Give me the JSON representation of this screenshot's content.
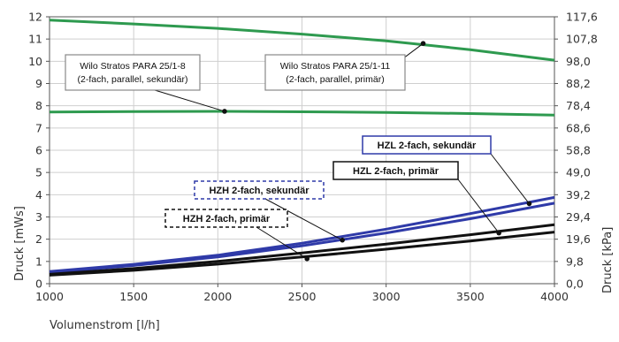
{
  "chart_data": {
    "type": "line",
    "xlabel": "Volumenstrom [l/h]",
    "ylabel": "Druck [mWs]",
    "y2label": "Druck [kPa]",
    "xlim": [
      1000,
      4000
    ],
    "ylim": [
      0,
      12
    ],
    "x_ticks": [
      "1000",
      "1500",
      "2000",
      "2500",
      "3000",
      "3500",
      "4000"
    ],
    "y_ticks": [
      "0",
      "1",
      "2",
      "3",
      "4",
      "5",
      "6",
      "7",
      "8",
      "9",
      "10",
      "11",
      "12"
    ],
    "y2_ticks": [
      "0,0",
      "9,8",
      "19,6",
      "29,4",
      "39,2",
      "49,0",
      "58,8",
      "68,6",
      "78,4",
      "88,2",
      "98,0",
      "107,8",
      "117,6"
    ],
    "grid": true,
    "series": [
      {
        "color": "#2e9a4f",
        "x": [
          1000,
          1500,
          2000,
          2500,
          3000,
          3500,
          4000
        ],
        "values": [
          11.85,
          11.68,
          11.48,
          11.22,
          10.92,
          10.52,
          10.05
        ]
      },
      {
        "color": "#2e9a4f",
        "x": [
          1000,
          1500,
          2000,
          2500,
          3000,
          3500,
          4000
        ],
        "values": [
          7.72,
          7.74,
          7.75,
          7.73,
          7.7,
          7.65,
          7.58
        ]
      },
      {
        "color": "#2f3aa8",
        "x": [
          1000,
          1500,
          2000,
          2500,
          3000,
          3500,
          4000
        ],
        "values": [
          0.55,
          0.87,
          1.28,
          1.82,
          2.45,
          3.15,
          3.88
        ]
      },
      {
        "color": "#2f3aa8",
        "x": [
          1000,
          1500,
          2000,
          2500,
          3000,
          3500,
          4000
        ],
        "values": [
          0.5,
          0.82,
          1.2,
          1.7,
          2.28,
          2.92,
          3.62
        ]
      },
      {
        "color": "#111111",
        "x": [
          1000,
          1500,
          2000,
          2500,
          3000,
          3500,
          4000
        ],
        "values": [
          0.42,
          0.68,
          1.0,
          1.38,
          1.78,
          2.2,
          2.65
        ]
      },
      {
        "color": "#111111",
        "x": [
          1000,
          1500,
          2000,
          2500,
          3000,
          3500,
          4000
        ],
        "values": [
          0.38,
          0.6,
          0.88,
          1.2,
          1.55,
          1.92,
          2.32
        ]
      }
    ],
    "annotations": [
      {
        "lines": [
          "Wilo Stratos PARA 25/1-8",
          "(2-fach, parallel, sekundär)"
        ],
        "box_style": "solid-gray",
        "anchor": [
          2040,
          7.75
        ]
      },
      {
        "lines": [
          "Wilo Stratos PARA 25/1-11",
          "(2-fach, parallel, primär)"
        ],
        "box_style": "solid-gray",
        "anchor": [
          3220,
          10.8
        ]
      },
      {
        "lines": [
          "HZL 2-fach, sekundär"
        ],
        "box_style": "solid-blue",
        "anchor": [
          3850,
          3.6
        ]
      },
      {
        "lines": [
          "HZL 2-fach, primär"
        ],
        "box_style": "solid-black",
        "anchor": [
          3670,
          2.28
        ]
      },
      {
        "lines": [
          "HZH 2-fach, sekundär"
        ],
        "box_style": "dashed-blue",
        "anchor": [
          2740,
          1.96
        ]
      },
      {
        "lines": [
          "HZH 2-fach, primär"
        ],
        "box_style": "dashed-black",
        "anchor": [
          2530,
          1.12
        ]
      }
    ]
  }
}
